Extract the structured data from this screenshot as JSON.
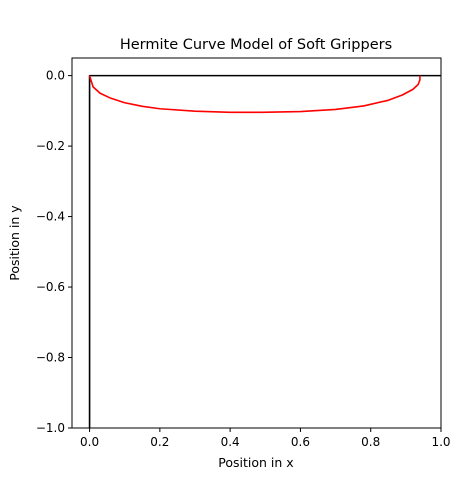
{
  "chart_data": {
    "type": "line",
    "title": "Hermite Curve Model of Soft Grippers",
    "xlabel": "Position in x",
    "ylabel": "Position in y",
    "xlim": [
      -0.05,
      1.0
    ],
    "ylim": [
      -1.0,
      0.05
    ],
    "xticks": [
      0.0,
      0.2,
      0.4,
      0.6,
      0.8,
      1.0
    ],
    "xtick_labels": [
      "0.0",
      "0.2",
      "0.4",
      "0.6",
      "0.8",
      "1.0"
    ],
    "yticks": [
      0.0,
      -0.2,
      -0.4,
      -0.6,
      -0.8,
      -1.0
    ],
    "ytick_labels": [
      "0.0",
      "−0.2",
      "−0.4",
      "−0.6",
      "−0.8",
      "−1.0"
    ],
    "grid": false,
    "legend": "none",
    "series": [
      {
        "color": "#000000",
        "x": [
          0.0,
          0.0,
          1.0
        ],
        "y": [
          -1.0,
          0.0,
          0.0
        ]
      },
      {
        "color": "#ff0000",
        "x": [
          0.0,
          0.01,
          0.03,
          0.06,
          0.1,
          0.15,
          0.2,
          0.3,
          0.4,
          0.49,
          0.6,
          0.7,
          0.78,
          0.85,
          0.89,
          0.92,
          0.935,
          0.94,
          0.94
        ],
        "y": [
          0.0,
          -0.032,
          -0.05,
          -0.064,
          -0.077,
          -0.087,
          -0.094,
          -0.101,
          -0.104,
          -0.104,
          -0.102,
          -0.096,
          -0.086,
          -0.07,
          -0.055,
          -0.039,
          -0.025,
          -0.012,
          0.0
        ]
      }
    ]
  }
}
